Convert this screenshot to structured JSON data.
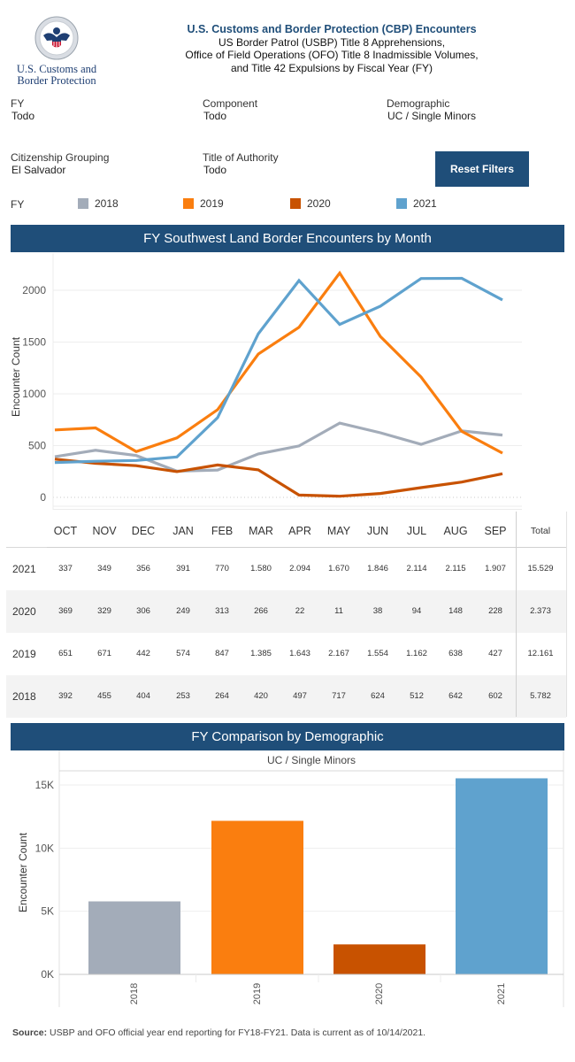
{
  "header": {
    "logo_line1": "U.S. Customs and",
    "logo_line2": "Border Protection",
    "title": "U.S. Customs and Border Protection (CBP) Encounters",
    "subtitle_lines": [
      "US Border Patrol (USBP) Title 8 Apprehensions,",
      "Office of Field Operations (OFO) Title 8 Inadmissible Volumes,",
      "and Title 42 Expulsions by Fiscal Year (FY)"
    ]
  },
  "filters": [
    {
      "label": "FY",
      "value": "Todo"
    },
    {
      "label": "Component",
      "value": "Todo"
    },
    {
      "label": "Demographic",
      "value": "UC / Single Minors"
    },
    {
      "label": "Citizenship Grouping",
      "value": "El Salvador"
    },
    {
      "label": "Title of Authority",
      "value": "Todo"
    }
  ],
  "reset_button": "Reset Filters",
  "legend": {
    "title": "FY",
    "items": [
      {
        "label": "2018",
        "color": "#a3acb9"
      },
      {
        "label": "2019",
        "color": "#fa7e0f"
      },
      {
        "label": "2020",
        "color": "#c85200"
      },
      {
        "label": "2021",
        "color": "#5fa2ce"
      }
    ]
  },
  "sections": {
    "monthly": "FY Southwest Land Border Encounters by Month",
    "demographic": "FY Comparison by Demographic"
  },
  "source": {
    "label": "Source:",
    "text": " USBP and OFO official year end reporting for FY18-FY21. Data is current as of 10/14/2021."
  },
  "table": {
    "columns": [
      "OCT",
      "NOV",
      "DEC",
      "JAN",
      "FEB",
      "MAR",
      "APR",
      "MAY",
      "JUN",
      "JUL",
      "AUG",
      "SEP",
      "Total"
    ],
    "rows": [
      {
        "year": "2021",
        "values": [
          "337",
          "349",
          "356",
          "391",
          "770",
          "1.580",
          "2.094",
          "1.670",
          "1.846",
          "2.114",
          "2.115",
          "1.907",
          "15.529"
        ]
      },
      {
        "year": "2020",
        "values": [
          "369",
          "329",
          "306",
          "249",
          "313",
          "266",
          "22",
          "11",
          "38",
          "94",
          "148",
          "228",
          "2.373"
        ]
      },
      {
        "year": "2019",
        "values": [
          "651",
          "671",
          "442",
          "574",
          "847",
          "1.385",
          "1.643",
          "2.167",
          "1.554",
          "1.162",
          "638",
          "427",
          "12.161"
        ]
      },
      {
        "year": "2018",
        "values": [
          "392",
          "455",
          "404",
          "253",
          "264",
          "420",
          "497",
          "717",
          "624",
          "512",
          "642",
          "602",
          "5.782"
        ]
      }
    ]
  },
  "chart_data": [
    {
      "type": "line",
      "title": "FY Southwest Land Border Encounters by Month",
      "xlabel": "",
      "ylabel": "Encounter Count",
      "categories": [
        "OCT",
        "NOV",
        "DEC",
        "JAN",
        "FEB",
        "MAR",
        "APR",
        "MAY",
        "JUN",
        "JUL",
        "AUG",
        "SEP"
      ],
      "ylim": [
        0,
        2200
      ],
      "yticks": [
        0,
        500,
        1000,
        1500,
        2000
      ],
      "grid": true,
      "legend": "top",
      "series": [
        {
          "name": "2018",
          "color": "#a3acb9",
          "values": [
            392,
            455,
            404,
            253,
            264,
            420,
            497,
            717,
            624,
            512,
            642,
            602
          ]
        },
        {
          "name": "2019",
          "color": "#fa7e0f",
          "values": [
            651,
            671,
            442,
            574,
            847,
            1385,
            1643,
            2167,
            1554,
            1162,
            638,
            427
          ]
        },
        {
          "name": "2020",
          "color": "#c85200",
          "values": [
            369,
            329,
            306,
            249,
            313,
            266,
            22,
            11,
            38,
            94,
            148,
            228
          ]
        },
        {
          "name": "2021",
          "color": "#5fa2ce",
          "values": [
            337,
            349,
            356,
            391,
            770,
            1580,
            2094,
            1670,
            1846,
            2114,
            2115,
            1907
          ]
        }
      ]
    },
    {
      "type": "bar",
      "title": "FY Comparison by Demographic",
      "panel_label": "UC / Single Minors",
      "xlabel": "",
      "ylabel": "Encounter Count",
      "categories": [
        "2018",
        "2019",
        "2020",
        "2021"
      ],
      "values": [
        5782,
        12161,
        2373,
        15529
      ],
      "colors": [
        "#a3acb9",
        "#fa7e0f",
        "#c85200",
        "#5fa2ce"
      ],
      "ylim": [
        0,
        16000
      ],
      "yticks": [
        0,
        5000,
        10000,
        15000
      ],
      "ytick_labels": [
        "0K",
        "5K",
        "10K",
        "15K"
      ],
      "grid": true
    }
  ]
}
